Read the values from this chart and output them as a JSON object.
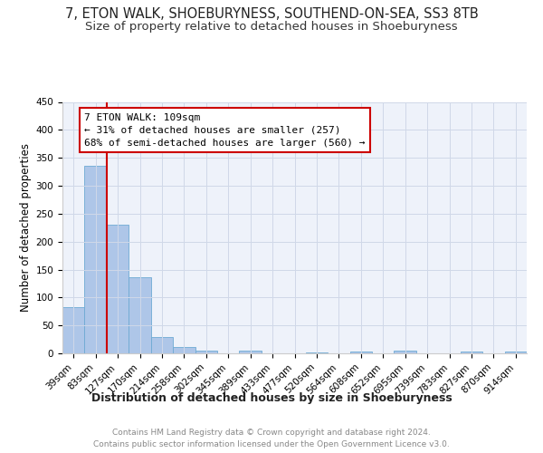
{
  "title": "7, ETON WALK, SHOEBURYNESS, SOUTHEND-ON-SEA, SS3 8TB",
  "subtitle": "Size of property relative to detached houses in Shoeburyness",
  "xlabel": "Distribution of detached houses by size in Shoeburyness",
  "ylabel": "Number of detached properties",
  "categories": [
    "39sqm",
    "83sqm",
    "127sqm",
    "170sqm",
    "214sqm",
    "258sqm",
    "302sqm",
    "345sqm",
    "389sqm",
    "433sqm",
    "477sqm",
    "520sqm",
    "564sqm",
    "608sqm",
    "652sqm",
    "695sqm",
    "739sqm",
    "783sqm",
    "827sqm",
    "870sqm",
    "914sqm"
  ],
  "values": [
    83,
    335,
    230,
    137,
    30,
    11,
    5,
    0,
    5,
    0,
    0,
    2,
    0,
    3,
    0,
    5,
    0,
    0,
    3,
    0,
    3
  ],
  "bar_color": "#aec6e8",
  "bar_edge_color": "#6eaad4",
  "vline_x_index": 2,
  "vline_color": "#cc0000",
  "annotation_text": "7 ETON WALK: 109sqm\n← 31% of detached houses are smaller (257)\n68% of semi-detached houses are larger (560) →",
  "annotation_box_color": "#ffffff",
  "annotation_box_edgecolor": "#cc0000",
  "ylim": [
    0,
    450
  ],
  "yticks": [
    0,
    50,
    100,
    150,
    200,
    250,
    300,
    350,
    400,
    450
  ],
  "grid_color": "#d0d8e8",
  "background_color": "#eef2fa",
  "footer_text": "Contains HM Land Registry data © Crown copyright and database right 2024.\nContains public sector information licensed under the Open Government Licence v3.0.",
  "title_fontsize": 10.5,
  "subtitle_fontsize": 9.5,
  "xlabel_fontsize": 9,
  "ylabel_fontsize": 8.5,
  "tick_fontsize": 7.5,
  "annotation_fontsize": 8,
  "footer_fontsize": 6.5
}
